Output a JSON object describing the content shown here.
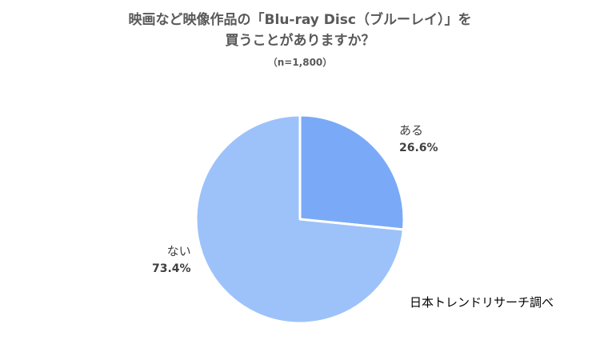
{
  "chart_data": {
    "type": "pie",
    "title_line1": "映画など映像作品の「Blu-ray Disc（ブルーレイ）」を",
    "title_line2": "買うことがありますか？",
    "subtitle": "（n=1,800）",
    "slices": [
      {
        "name": "ある",
        "value": 26.6,
        "label": "26.6%",
        "color": "#7aaaf7"
      },
      {
        "name": "ない",
        "value": 73.4,
        "label": "73.4%",
        "color": "#9dc2fa"
      }
    ],
    "start": "12 o'clock",
    "direction": "clockwise",
    "legend": "none"
  },
  "source": "日本トレンドリサーチ調べ"
}
